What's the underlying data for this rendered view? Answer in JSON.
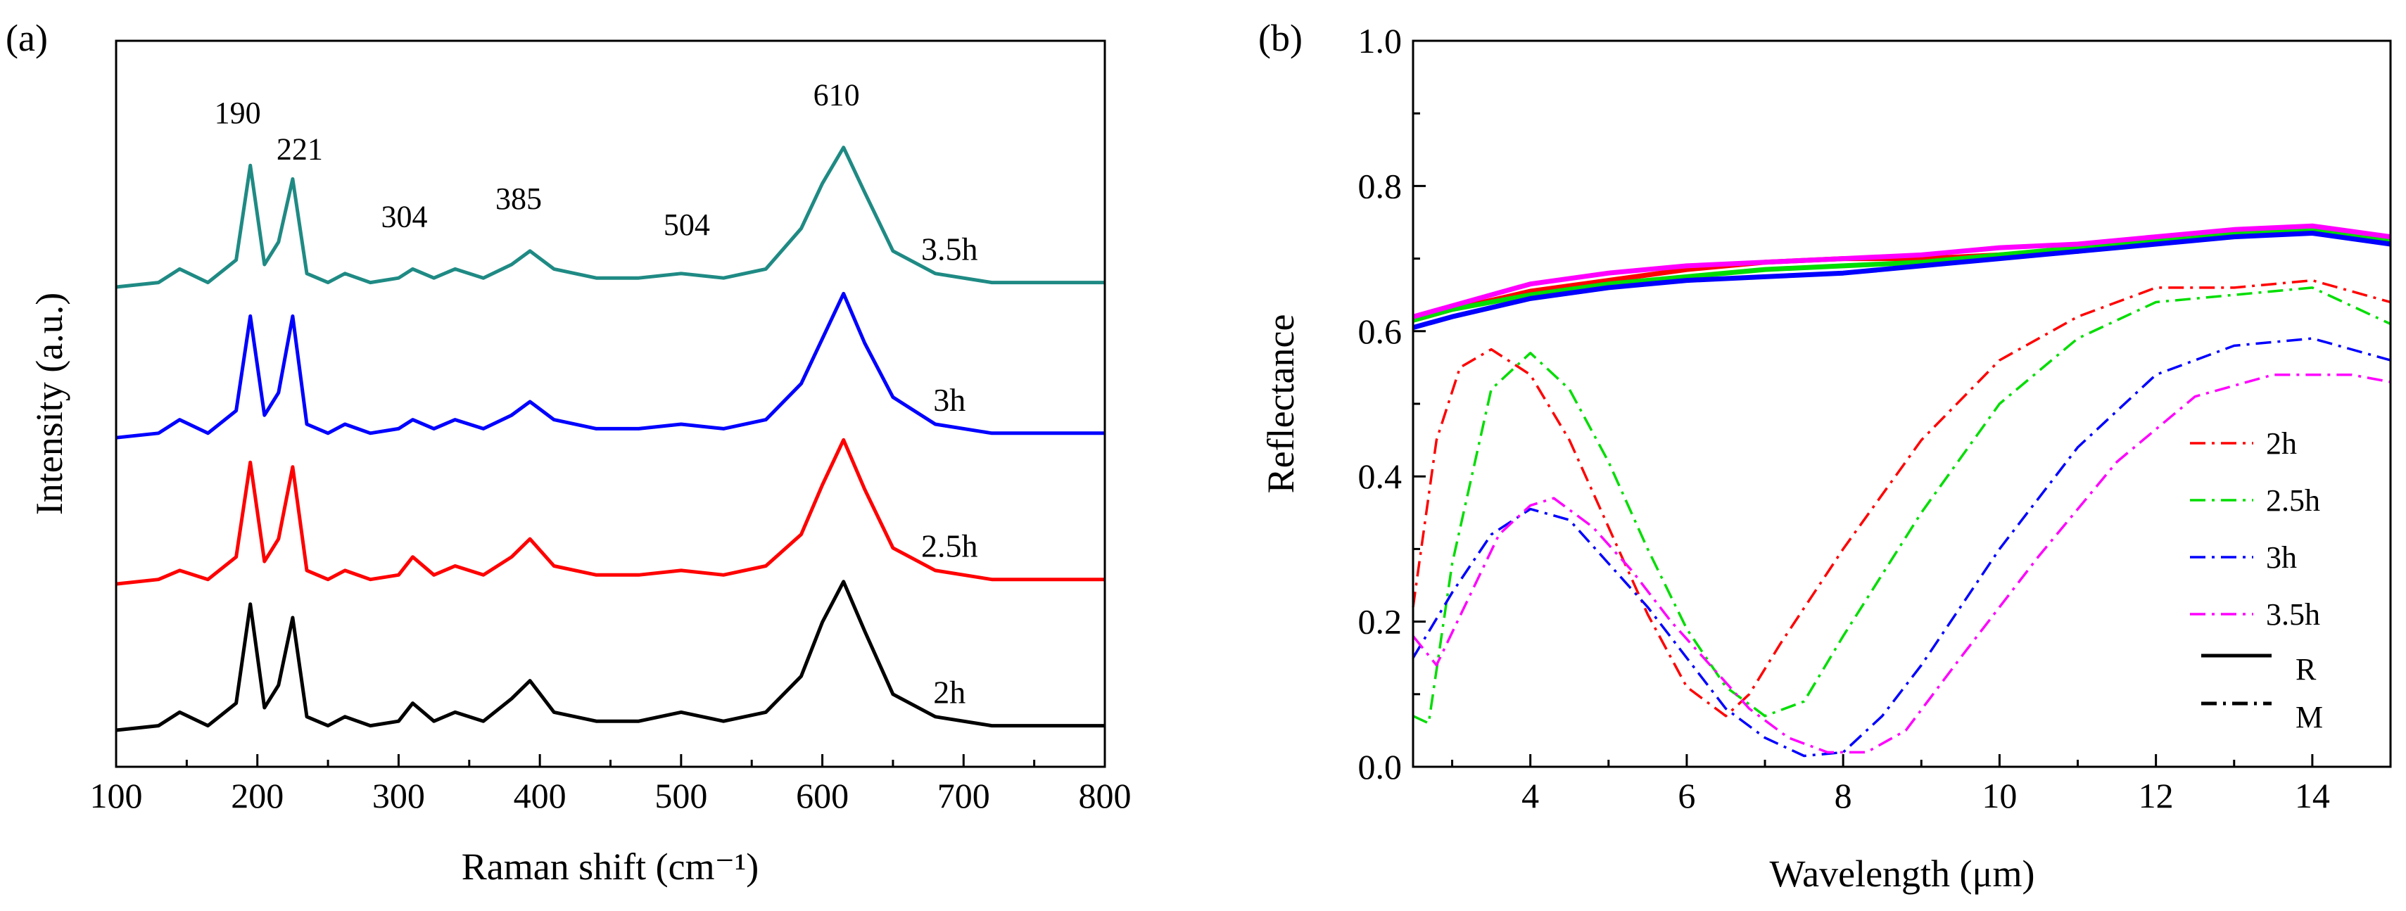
{
  "chart_data": [
    {
      "panel_label": "(a)",
      "type": "line",
      "xlabel": "Raman shift (cm⁻¹)",
      "ylabel": "Intensity (a.u.)",
      "xlim": [
        100,
        800
      ],
      "xticks": [
        "100",
        "200",
        "300",
        "400",
        "500",
        "600",
        "700",
        "800"
      ],
      "yticks_shown": false,
      "grid": false,
      "legend": "none",
      "peaks": [
        {
          "x": 190,
          "label": "190"
        },
        {
          "x": 221,
          "label": "221"
        },
        {
          "x": 304,
          "label": "304"
        },
        {
          "x": 385,
          "label": "385"
        },
        {
          "x": 504,
          "label": "504"
        },
        {
          "x": 610,
          "label": "610"
        }
      ],
      "series": [
        {
          "name": "2h",
          "color": "#000000",
          "offset": 0.0,
          "x": [
            100,
            130,
            145,
            165,
            185,
            195,
            205,
            215,
            225,
            235,
            250,
            262,
            280,
            300,
            310,
            325,
            340,
            360,
            380,
            393,
            410,
            440,
            470,
            500,
            530,
            560,
            585,
            600,
            615,
            630,
            650,
            680,
            720,
            800
          ],
          "y": [
            0.0,
            0.01,
            0.04,
            0.01,
            0.06,
            0.28,
            0.05,
            0.1,
            0.25,
            0.03,
            0.01,
            0.03,
            0.01,
            0.02,
            0.06,
            0.02,
            0.04,
            0.02,
            0.07,
            0.11,
            0.04,
            0.02,
            0.02,
            0.04,
            0.02,
            0.04,
            0.12,
            0.24,
            0.33,
            0.22,
            0.08,
            0.03,
            0.01,
            0.01
          ]
        },
        {
          "name": "2.5h",
          "color": "#ff0000",
          "offset": 0.33,
          "x": [
            100,
            130,
            145,
            165,
            185,
            195,
            205,
            215,
            225,
            235,
            250,
            262,
            280,
            300,
            310,
            325,
            340,
            360,
            380,
            393,
            410,
            440,
            470,
            500,
            530,
            560,
            585,
            600,
            615,
            630,
            650,
            680,
            720,
            800
          ],
          "y": [
            0.0,
            0.01,
            0.03,
            0.01,
            0.06,
            0.27,
            0.05,
            0.1,
            0.26,
            0.03,
            0.01,
            0.03,
            0.01,
            0.02,
            0.06,
            0.02,
            0.04,
            0.02,
            0.06,
            0.1,
            0.04,
            0.02,
            0.02,
            0.03,
            0.02,
            0.04,
            0.11,
            0.22,
            0.32,
            0.21,
            0.08,
            0.03,
            0.01,
            0.01
          ]
        },
        {
          "name": "3h",
          "color": "#0000ff",
          "offset": 0.66,
          "x": [
            100,
            130,
            145,
            165,
            185,
            195,
            205,
            215,
            225,
            235,
            250,
            262,
            280,
            300,
            310,
            325,
            340,
            360,
            380,
            393,
            410,
            440,
            470,
            500,
            530,
            560,
            585,
            600,
            615,
            630,
            650,
            680,
            720,
            800
          ],
          "y": [
            0.0,
            0.01,
            0.04,
            0.01,
            0.06,
            0.27,
            0.05,
            0.1,
            0.27,
            0.03,
            0.01,
            0.03,
            0.01,
            0.02,
            0.04,
            0.02,
            0.04,
            0.02,
            0.05,
            0.08,
            0.04,
            0.02,
            0.02,
            0.03,
            0.02,
            0.04,
            0.12,
            0.22,
            0.32,
            0.21,
            0.09,
            0.03,
            0.01,
            0.01
          ]
        },
        {
          "name": "3.5h",
          "color": "#1f8a84",
          "offset": 1.0,
          "x": [
            100,
            130,
            145,
            165,
            185,
            195,
            205,
            215,
            225,
            235,
            250,
            262,
            280,
            300,
            310,
            325,
            340,
            360,
            380,
            393,
            410,
            440,
            470,
            500,
            530,
            560,
            585,
            600,
            615,
            630,
            650,
            680,
            720,
            800
          ],
          "y": [
            0.0,
            0.01,
            0.04,
            0.01,
            0.06,
            0.27,
            0.05,
            0.1,
            0.24,
            0.03,
            0.01,
            0.03,
            0.01,
            0.02,
            0.04,
            0.02,
            0.04,
            0.02,
            0.05,
            0.08,
            0.04,
            0.02,
            0.02,
            0.03,
            0.02,
            0.04,
            0.13,
            0.23,
            0.31,
            0.21,
            0.08,
            0.03,
            0.01,
            0.01
          ]
        }
      ]
    },
    {
      "panel_label": "(b)",
      "type": "line",
      "xlabel": "Wavelength (μm)",
      "ylabel": "Reflectance",
      "xlim": [
        2.5,
        15
      ],
      "ylim": [
        0.0,
        1.0
      ],
      "xticks": [
        "4",
        "6",
        "8",
        "10",
        "12",
        "14"
      ],
      "yticks": [
        "0.0",
        "0.2",
        "0.4",
        "0.6",
        "0.8",
        "1.0"
      ],
      "grid": false,
      "legend": "right",
      "legend_entries": [
        {
          "label": "2h",
          "color": "#ff0000",
          "style": "dash-dot"
        },
        {
          "label": "2.5h",
          "color": "#00dd00",
          "style": "dash-dot"
        },
        {
          "label": "3h",
          "color": "#0000ff",
          "style": "dash-dot"
        },
        {
          "label": "3.5h",
          "color": "#ff00ff",
          "style": "dash-dot"
        }
      ],
      "style_legend": [
        {
          "label": "R",
          "style": "solid"
        },
        {
          "label": "M",
          "style": "dash-dot"
        }
      ],
      "series": [
        {
          "name": "2h R",
          "color": "#ff0000",
          "style": "solid",
          "x": [
            2.5,
            3,
            4,
            5,
            6,
            7,
            8,
            9,
            10,
            11,
            12,
            13,
            14,
            15
          ],
          "y": [
            0.615,
            0.63,
            0.655,
            0.67,
            0.685,
            0.695,
            0.7,
            0.7,
            0.705,
            0.71,
            0.725,
            0.735,
            0.74,
            0.73
          ]
        },
        {
          "name": "2.5h R",
          "color": "#00dd00",
          "style": "solid",
          "x": [
            2.5,
            3,
            4,
            5,
            6,
            7,
            8,
            9,
            10,
            11,
            12,
            13,
            14,
            15
          ],
          "y": [
            0.615,
            0.63,
            0.65,
            0.665,
            0.675,
            0.685,
            0.69,
            0.695,
            0.705,
            0.715,
            0.725,
            0.735,
            0.74,
            0.725
          ]
        },
        {
          "name": "3h R",
          "color": "#0000ff",
          "style": "solid",
          "x": [
            2.5,
            3,
            4,
            5,
            6,
            7,
            8,
            9,
            10,
            11,
            12,
            13,
            14,
            15
          ],
          "y": [
            0.605,
            0.62,
            0.645,
            0.66,
            0.67,
            0.675,
            0.68,
            0.69,
            0.7,
            0.71,
            0.72,
            0.73,
            0.735,
            0.72
          ]
        },
        {
          "name": "3.5h R",
          "color": "#ff00ff",
          "style": "solid",
          "x": [
            2.5,
            3,
            4,
            5,
            6,
            7,
            8,
            9,
            10,
            11,
            12,
            13,
            14,
            15
          ],
          "y": [
            0.62,
            0.635,
            0.665,
            0.68,
            0.69,
            0.695,
            0.7,
            0.705,
            0.715,
            0.72,
            0.73,
            0.74,
            0.745,
            0.73
          ]
        },
        {
          "name": "2h M",
          "color": "#ff0000",
          "style": "dash-dot",
          "x": [
            2.5,
            2.8,
            3.1,
            3.5,
            4.0,
            4.5,
            5.0,
            5.5,
            6.0,
            6.5,
            6.8,
            7.2,
            8.0,
            9.0,
            10.0,
            11.0,
            12.0,
            13.0,
            14.0,
            15.0
          ],
          "y": [
            0.22,
            0.45,
            0.55,
            0.575,
            0.54,
            0.45,
            0.33,
            0.21,
            0.11,
            0.07,
            0.1,
            0.17,
            0.3,
            0.45,
            0.56,
            0.62,
            0.66,
            0.66,
            0.67,
            0.64
          ]
        },
        {
          "name": "2.5h M",
          "color": "#00dd00",
          "style": "dash-dot",
          "x": [
            2.5,
            2.7,
            3.0,
            3.5,
            4.0,
            4.5,
            5.0,
            5.5,
            6.0,
            6.5,
            7.0,
            7.5,
            8.0,
            9.0,
            10.0,
            11.0,
            12.0,
            13.0,
            14.0,
            15.0
          ],
          "y": [
            0.07,
            0.06,
            0.28,
            0.52,
            0.57,
            0.52,
            0.42,
            0.3,
            0.19,
            0.11,
            0.07,
            0.09,
            0.18,
            0.35,
            0.5,
            0.59,
            0.64,
            0.65,
            0.66,
            0.61
          ]
        },
        {
          "name": "3h M",
          "color": "#0000ff",
          "style": "dash-dot",
          "x": [
            2.5,
            3.0,
            3.5,
            4.0,
            4.5,
            5.0,
            5.5,
            6.0,
            6.5,
            7.0,
            7.5,
            8.0,
            8.5,
            9.0,
            10.0,
            11.0,
            12.0,
            13.0,
            14.0,
            15.0
          ],
          "y": [
            0.15,
            0.24,
            0.32,
            0.355,
            0.34,
            0.28,
            0.22,
            0.15,
            0.08,
            0.04,
            0.015,
            0.02,
            0.07,
            0.14,
            0.3,
            0.44,
            0.54,
            0.58,
            0.59,
            0.56
          ]
        },
        {
          "name": "3.5h M",
          "color": "#ff00ff",
          "style": "dash-dot",
          "x": [
            2.5,
            2.8,
            3.2,
            3.6,
            4.0,
            4.3,
            4.8,
            5.3,
            5.8,
            6.3,
            6.8,
            7.3,
            7.8,
            8.3,
            8.8,
            9.5,
            10.5,
            11.5,
            12.5,
            13.5,
            14.5,
            15.0
          ],
          "y": [
            0.18,
            0.14,
            0.23,
            0.32,
            0.36,
            0.37,
            0.33,
            0.27,
            0.2,
            0.14,
            0.08,
            0.04,
            0.02,
            0.02,
            0.05,
            0.15,
            0.29,
            0.42,
            0.51,
            0.54,
            0.54,
            0.53
          ]
        }
      ]
    }
  ]
}
